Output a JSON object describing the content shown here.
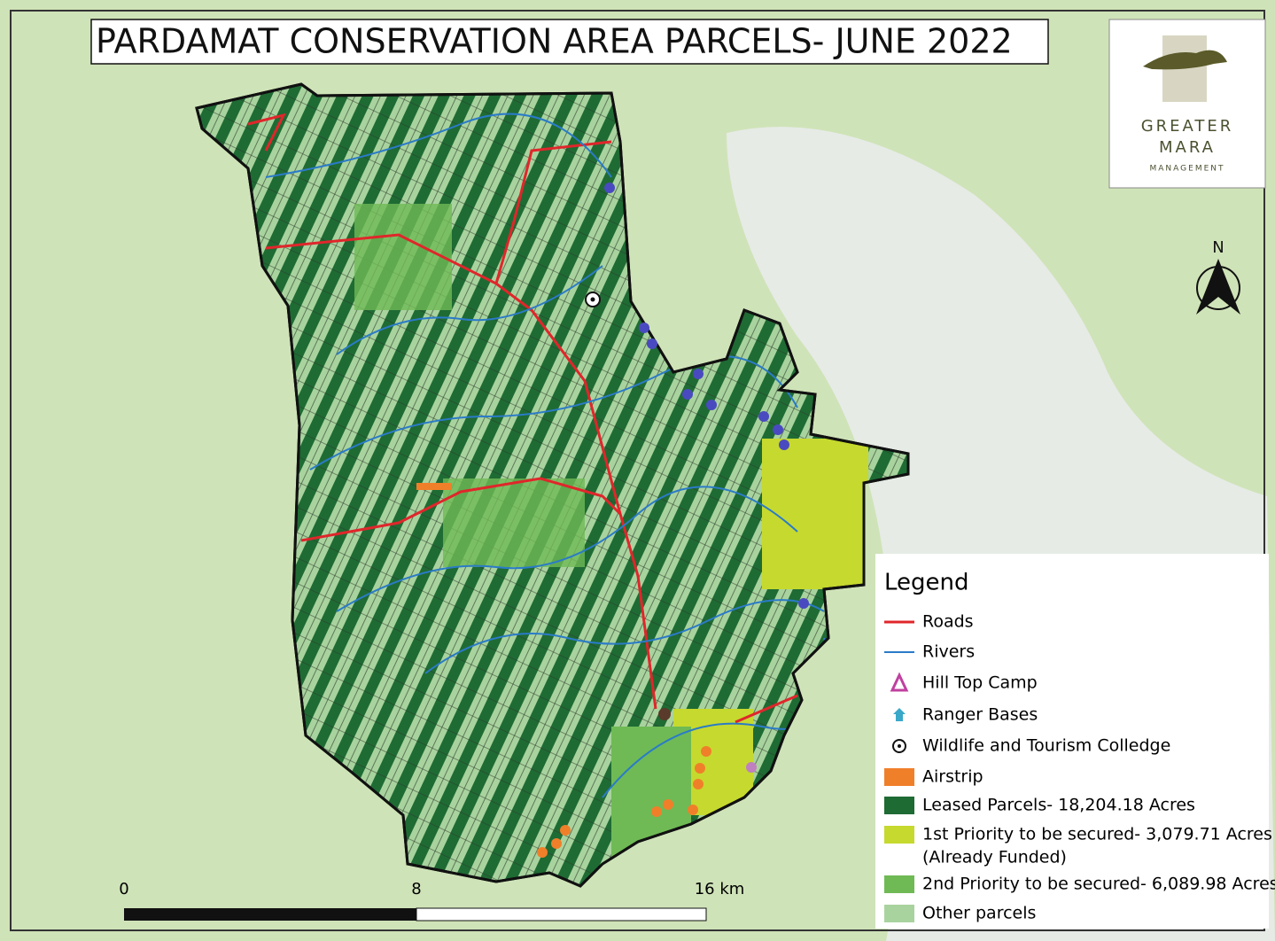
{
  "title": "PARDAMAT CONSERVATION AREA PARCELS- JUNE 2022",
  "logo": {
    "line1": "GREATER",
    "line2": "MARA",
    "line3": "MANAGEMENT"
  },
  "north": "N",
  "legend": {
    "title": "Legend",
    "items": [
      {
        "label": "Roads"
      },
      {
        "label": "Rivers"
      },
      {
        "label": "Hill Top Camp"
      },
      {
        "label": "Ranger Bases"
      },
      {
        "label": "Wildlife and Tourism Colledge"
      },
      {
        "label": "Airstrip"
      },
      {
        "label": "Leased Parcels- 18,204.18 Acres"
      },
      {
        "label": "1st Priority to be secured- 3,079.71 Acres",
        "note": "(Already Funded)"
      },
      {
        "label": "2nd Priority to be secured- 6,089.98 Acres"
      },
      {
        "label": "Other parcels"
      }
    ]
  },
  "scale": {
    "labels": [
      "0",
      "8",
      "16 km"
    ]
  }
}
